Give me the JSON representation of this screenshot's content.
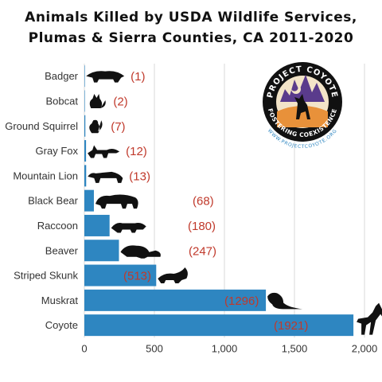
{
  "chart_data": {
    "type": "bar",
    "orientation": "horizontal",
    "title_lines": [
      "Animals Killed by USDA Wildlife Services,",
      "Plumas & Sierra Counties, CA 2011-2020"
    ],
    "categories": [
      "Badger",
      "Bobcat",
      "Ground Squirrel",
      "Gray Fox",
      "Mountain Lion",
      "Black Bear",
      "Raccoon",
      "Beaver",
      "Striped Skunk",
      "Muskrat",
      "Coyote"
    ],
    "values": [
      1,
      2,
      7,
      12,
      13,
      68,
      180,
      247,
      513,
      1296,
      1921
    ],
    "data_labels": [
      "(1)",
      "(2)",
      "(7)",
      "(12)",
      "(13)",
      "(68)",
      "(180)",
      "(247)",
      "(513)",
      "(1296)",
      "(1921)"
    ],
    "xlim": [
      0,
      2000
    ],
    "xticks": [
      0,
      500,
      1000,
      1500,
      2000
    ],
    "xtick_labels": [
      "0",
      "500",
      "1,000",
      "1,500",
      "2,000"
    ],
    "grid": true,
    "bar_color": "#2e86c1",
    "label_color": "#c0392b"
  },
  "logo": {
    "top_text": "PROJECT COYOTE",
    "bottom_text": "FOSTERING COEXISTENCE",
    "url": "WWW.PROJECTCOYOTE.ORG"
  }
}
